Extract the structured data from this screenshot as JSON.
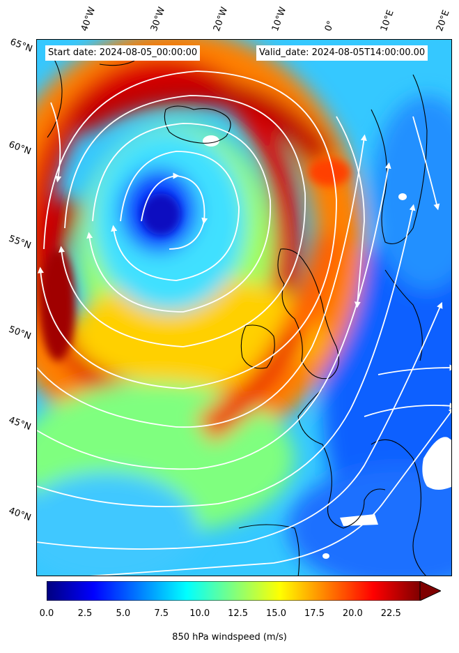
{
  "header": {
    "start_date": "Start date: 2024-08-05_00:00:00",
    "valid_date": "Valid_date: 2024-08-05T14:00:00.00"
  },
  "axes": {
    "lon_labels": [
      "40°W",
      "30°W",
      "20°W",
      "10°W",
      "0°",
      "10°E",
      "20°E"
    ],
    "lat_labels": [
      "65°N",
      "60°N",
      "55°N",
      "50°N",
      "45°N",
      "40°N"
    ]
  },
  "colorbar": {
    "label": "850 hPa windspeed (m/s)",
    "ticks": [
      "0.0",
      "2.5",
      "5.0",
      "7.5",
      "10.0",
      "12.5",
      "15.0",
      "17.5",
      "20.0",
      "22.5"
    ],
    "colors": [
      "#00007f",
      "#0000ff",
      "#007fff",
      "#00ffff",
      "#7fff7f",
      "#ffff00",
      "#ff7f00",
      "#ff0000",
      "#7f0000"
    ],
    "extend": "max"
  },
  "field": {
    "cyclone_center": "south of Iceland",
    "streamline_color": "#ffffff",
    "coastline_color": "#000000"
  }
}
